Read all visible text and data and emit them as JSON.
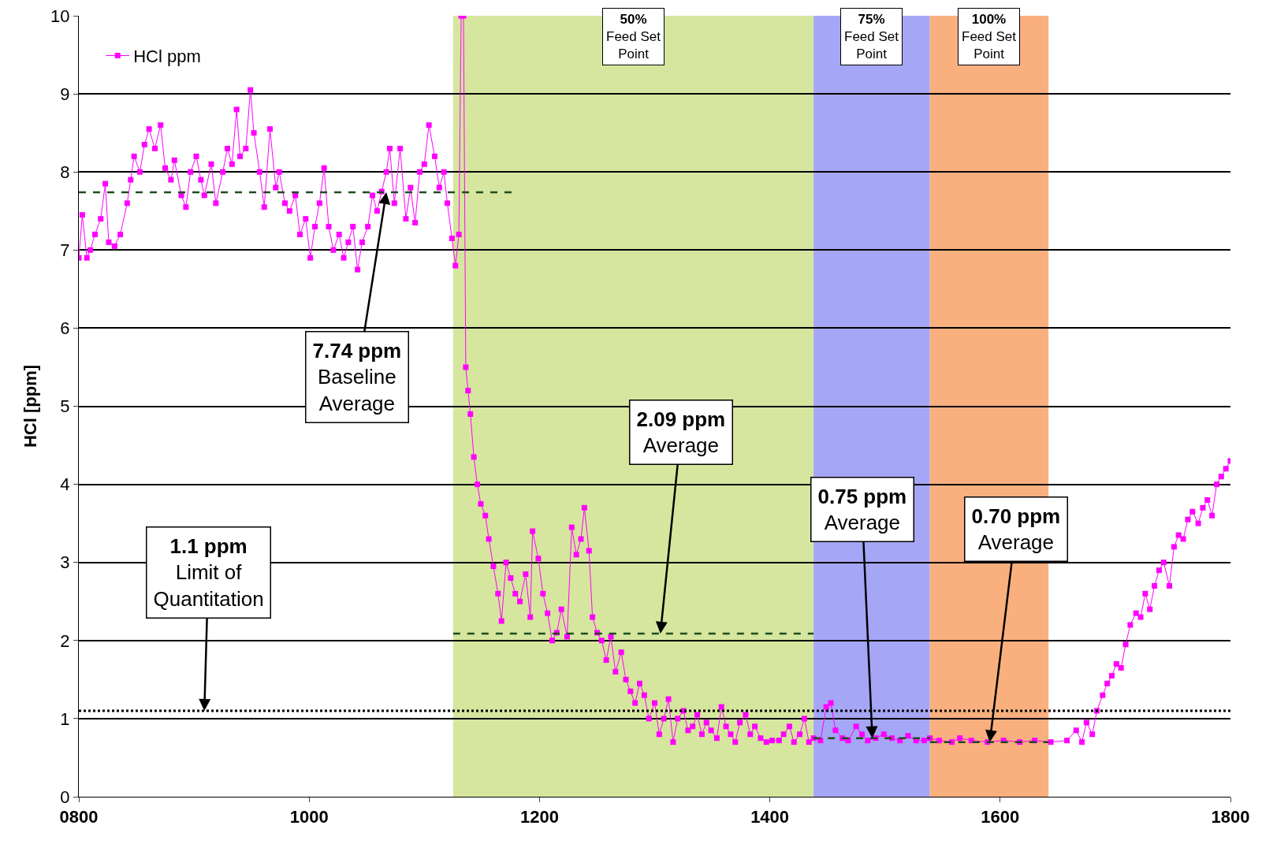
{
  "chart_data": {
    "type": "line",
    "ylabel": "HCl [ppm]",
    "xlim": [
      800,
      1800
    ],
    "ylim": [
      0,
      10
    ],
    "xticks": [
      {
        "value": 800,
        "label": "0800"
      },
      1000,
      1200,
      1400,
      1600,
      1800
    ],
    "yticks": [
      0,
      1,
      2,
      3,
      4,
      5,
      6,
      7,
      8,
      9,
      10
    ],
    "grid": "y",
    "legend": "top left",
    "marker": "square",
    "line_style": "solid",
    "series": [
      {
        "name": "HCl ppm",
        "color": "#ff00ff",
        "x": [
          800,
          803,
          807,
          810,
          814,
          819,
          823,
          826,
          831,
          836,
          842,
          845,
          848,
          853,
          857,
          861,
          866,
          871,
          875,
          880,
          883,
          889,
          893,
          897,
          902,
          906,
          909,
          915,
          919,
          925,
          929,
          933,
          937,
          940,
          945,
          949,
          952,
          957,
          961,
          966,
          971,
          974,
          979,
          983,
          988,
          992,
          997,
          1001,
          1005,
          1009,
          1013,
          1017,
          1021,
          1026,
          1030,
          1034,
          1038,
          1042,
          1046,
          1051,
          1055,
          1059,
          1063,
          1067,
          1070,
          1074,
          1079,
          1084,
          1088,
          1092,
          1096,
          1100,
          1104,
          1109,
          1113,
          1117,
          1120,
          1124,
          1127,
          1130,
          1132,
          1134,
          1136,
          1138,
          1140,
          1143,
          1146,
          1149,
          1153,
          1156,
          1160,
          1164,
          1167,
          1171,
          1175,
          1179,
          1183,
          1188,
          1192,
          1194,
          1199,
          1203,
          1207,
          1211,
          1215,
          1219,
          1224,
          1228,
          1232,
          1236,
          1239,
          1243,
          1246,
          1250,
          1254,
          1258,
          1262,
          1266,
          1271,
          1275,
          1279,
          1283,
          1287,
          1291,
          1295,
          1300,
          1304,
          1308,
          1312,
          1316,
          1320,
          1325,
          1329,
          1333,
          1337,
          1341,
          1345,
          1349,
          1354,
          1358,
          1362,
          1366,
          1370,
          1374,
          1379,
          1383,
          1387,
          1392,
          1397,
          1402,
          1408,
          1412,
          1417,
          1421,
          1426,
          1430,
          1434,
          1438,
          1444,
          1449,
          1453,
          1457,
          1463,
          1468,
          1475,
          1480,
          1485,
          1492,
          1499,
          1506,
          1513,
          1520,
          1527,
          1534,
          1539,
          1547,
          1558,
          1565,
          1575,
          1589,
          1603,
          1617,
          1630,
          1644,
          1658,
          1666,
          1671,
          1675,
          1680,
          1684,
          1689,
          1693,
          1697,
          1701,
          1705,
          1709,
          1713,
          1718,
          1722,
          1726,
          1730,
          1734,
          1738,
          1742,
          1747,
          1751,
          1755,
          1759,
          1763,
          1767,
          1772,
          1776,
          1780,
          1784,
          1788,
          1792,
          1796,
          1800
        ],
        "values": [
          6.9,
          7.45,
          6.9,
          7.0,
          7.2,
          7.4,
          7.85,
          7.1,
          7.05,
          7.2,
          7.6,
          7.9,
          8.2,
          8.0,
          8.35,
          8.55,
          8.3,
          8.6,
          8.05,
          7.9,
          8.15,
          7.7,
          7.55,
          8.0,
          8.2,
          7.9,
          7.7,
          8.1,
          7.6,
          8.0,
          8.3,
          8.1,
          8.8,
          8.2,
          8.3,
          9.05,
          8.5,
          8.0,
          7.55,
          8.55,
          7.8,
          8.0,
          7.6,
          7.5,
          7.7,
          7.2,
          7.4,
          6.9,
          7.3,
          7.6,
          8.05,
          7.3,
          7.0,
          7.2,
          6.9,
          7.1,
          7.3,
          6.75,
          7.1,
          7.3,
          7.7,
          7.5,
          7.75,
          8.0,
          8.3,
          7.6,
          8.3,
          7.4,
          7.8,
          7.35,
          8.0,
          8.1,
          8.6,
          8.2,
          7.8,
          8.0,
          7.6,
          7.15,
          6.8,
          7.2,
          10,
          10,
          5.5,
          5.2,
          4.9,
          4.35,
          4.0,
          3.75,
          3.6,
          3.3,
          2.95,
          2.6,
          2.25,
          3.0,
          2.8,
          2.6,
          2.5,
          2.85,
          2.3,
          3.4,
          3.05,
          2.6,
          2.35,
          2.0,
          2.1,
          2.4,
          2.05,
          3.45,
          3.1,
          3.3,
          3.7,
          3.15,
          2.3,
          2.1,
          2.0,
          1.75,
          2.05,
          1.6,
          1.85,
          1.5,
          1.35,
          1.2,
          1.45,
          1.3,
          1.0,
          1.2,
          0.8,
          1.0,
          1.25,
          0.7,
          1.0,
          1.1,
          0.85,
          0.9,
          1.05,
          0.8,
          0.95,
          0.85,
          0.75,
          1.15,
          0.9,
          0.8,
          0.7,
          0.95,
          1.05,
          0.8,
          0.9,
          0.75,
          0.7,
          0.72,
          0.72,
          0.8,
          0.9,
          0.7,
          0.8,
          1.0,
          0.7,
          0.75,
          0.72,
          1.15,
          1.2,
          0.85,
          0.75,
          0.72,
          0.9,
          0.8,
          0.72,
          0.75,
          0.8,
          0.75,
          0.72,
          0.78,
          0.72,
          0.72,
          0.75,
          0.72,
          0.7,
          0.75,
          0.72,
          0.7,
          0.72,
          0.7,
          0.72,
          0.7,
          0.72,
          0.85,
          0.7,
          0.95,
          0.8,
          1.1,
          1.3,
          1.45,
          1.55,
          1.7,
          1.65,
          1.95,
          2.2,
          2.35,
          2.3,
          2.6,
          2.4,
          2.7,
          2.9,
          3.0,
          2.7,
          3.2,
          3.35,
          3.3,
          3.55,
          3.65,
          3.5,
          3.7,
          3.8,
          3.6,
          4.0,
          4.1,
          4.2,
          4.3
        ]
      },
      {
        "type": "line",
        "color": "#1e4d1e",
        "line_style": "dashed",
        "marker": "none",
        "x": [
          800,
          1179
        ],
        "values": [
          7.74,
          7.74
        ]
      },
      {
        "type": "line",
        "color": "#1e4d1e",
        "line_style": "dashed",
        "marker": "none",
        "x": [
          1125,
          1438
        ],
        "values": [
          2.09,
          2.09
        ]
      },
      {
        "type": "line",
        "color": "#1e4d1e",
        "line_style": "dashed",
        "marker": "none",
        "x": [
          1438,
          1539
        ],
        "values": [
          0.75,
          0.75
        ]
      },
      {
        "type": "line",
        "color": "#1e4d1e",
        "line_style": "dashed",
        "marker": "none",
        "x": [
          1539,
          1642
        ],
        "values": [
          0.7,
          0.7
        ]
      }
    ],
    "ref_lines": [
      {
        "axis": "y",
        "value": 1.1,
        "color": "#000000",
        "line_style": "dotted"
      }
    ],
    "bands": [
      {
        "axis": "x",
        "from": 1125,
        "to": 1438,
        "color": "#d6e69e",
        "label": "50%\nFeed Set\nPoint"
      },
      {
        "axis": "x",
        "from": 1438,
        "to": 1539,
        "color": "#a6a6f7",
        "label": "75%\nFeed Set\nPoint"
      },
      {
        "axis": "x",
        "from": 1539,
        "to": 1642,
        "color": "#f9b07e",
        "label": "100%\nFeed Set\nPoint"
      }
    ],
    "annotations": [
      {
        "text": "7.74 ppm\nBaseline\nAverage",
        "x": 1067,
        "y": 7.74
      },
      {
        "text": "2.09 ppm\nAverage",
        "x": 1305,
        "y": 2.09
      },
      {
        "text": "0.75 ppm\nAverage",
        "x": 1489,
        "y": 0.75
      },
      {
        "text": "0.70 ppm\nAverage",
        "x": 1591,
        "y": 0.7
      },
      {
        "text": "1.1 ppm\nLimit of\nQuantitation",
        "x": 909,
        "y": 1.1
      }
    ]
  }
}
